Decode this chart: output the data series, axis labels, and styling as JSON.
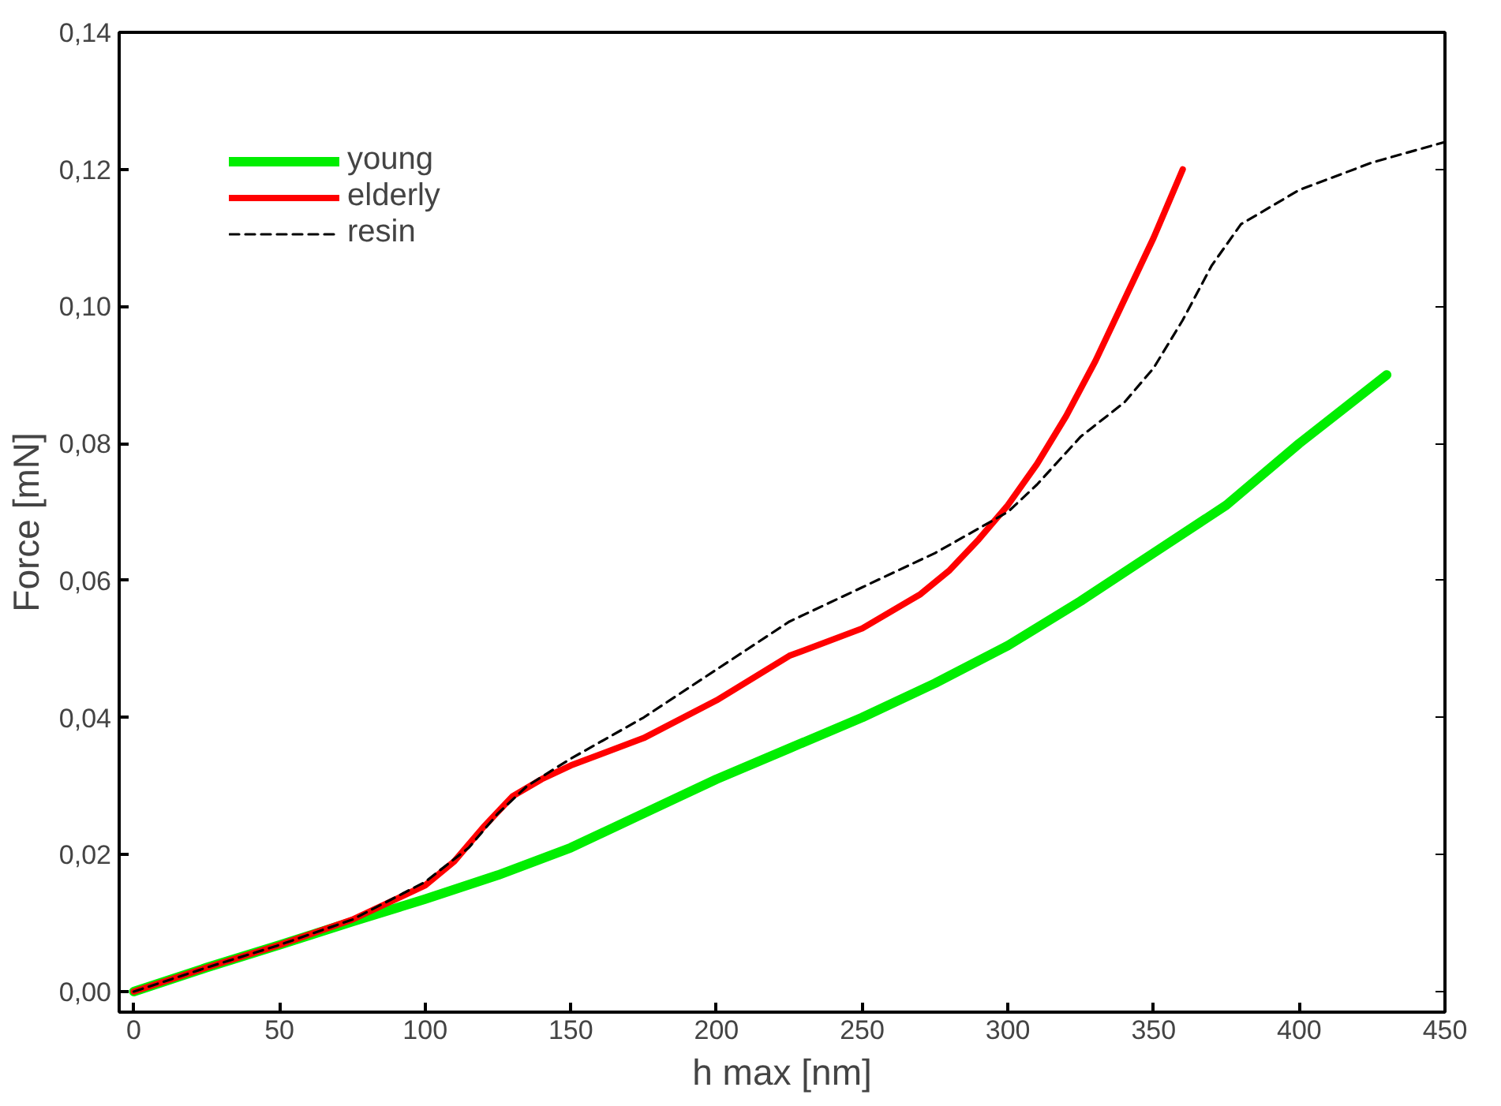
{
  "chart_data": {
    "type": "line",
    "xlabel": "h max [nm]",
    "ylabel": "Force [mN]",
    "xlim": [
      -5,
      450
    ],
    "ylim": [
      -0.003,
      0.14
    ],
    "xticks": [
      0,
      50,
      100,
      150,
      200,
      250,
      300,
      350,
      400,
      450
    ],
    "yticks": [
      {
        "value": 0,
        "label": "0,00"
      },
      {
        "value": 0.02,
        "label": "0,02"
      },
      {
        "value": 0.04,
        "label": "0,04"
      },
      {
        "value": 0.06,
        "label": "0,06"
      },
      {
        "value": 0.08,
        "label": "0,08"
      },
      {
        "value": 0.1,
        "label": "0,10"
      },
      {
        "value": 0.12,
        "label": "0,12"
      },
      {
        "value": 0.14,
        "label": "0,14"
      }
    ],
    "grid": false,
    "legend": "top left",
    "marker": "none",
    "series": [
      {
        "name": "young",
        "color": "#00ee00",
        "line_style": "solid",
        "x": [
          0,
          25,
          50,
          75,
          100,
          125,
          150,
          175,
          200,
          225,
          250,
          275,
          300,
          325,
          350,
          375,
          400,
          430
        ],
        "values": [
          0,
          0.0035,
          0.0068,
          0.0102,
          0.0135,
          0.017,
          0.021,
          0.026,
          0.031,
          0.0355,
          0.04,
          0.045,
          0.0505,
          0.057,
          0.064,
          0.071,
          0.08,
          0.09
        ]
      },
      {
        "name": "elderly",
        "color": "#ff0000",
        "line_style": "solid",
        "x": [
          0,
          25,
          50,
          75,
          100,
          110,
          120,
          130,
          140,
          150,
          175,
          200,
          225,
          250,
          270,
          280,
          290,
          300,
          310,
          320,
          330,
          340,
          350,
          360
        ],
        "values": [
          0,
          0.0035,
          0.0068,
          0.0105,
          0.0155,
          0.019,
          0.024,
          0.0285,
          0.031,
          0.033,
          0.037,
          0.0425,
          0.049,
          0.053,
          0.058,
          0.0615,
          0.066,
          0.071,
          0.077,
          0.084,
          0.092,
          0.101,
          0.11,
          0.12
        ]
      },
      {
        "name": "resin",
        "color": "#000000",
        "line_style": "dashed",
        "x": [
          0,
          25,
          50,
          75,
          100,
          115,
          125,
          135,
          150,
          175,
          200,
          225,
          250,
          275,
          300,
          310,
          325,
          340,
          350,
          360,
          370,
          380,
          400,
          425,
          450
        ],
        "values": [
          0,
          0.0035,
          0.0068,
          0.0105,
          0.016,
          0.021,
          0.026,
          0.03,
          0.034,
          0.04,
          0.047,
          0.054,
          0.059,
          0.064,
          0.07,
          0.074,
          0.081,
          0.086,
          0.091,
          0.098,
          0.106,
          0.112,
          0.117,
          0.121,
          0.124
        ]
      }
    ]
  }
}
